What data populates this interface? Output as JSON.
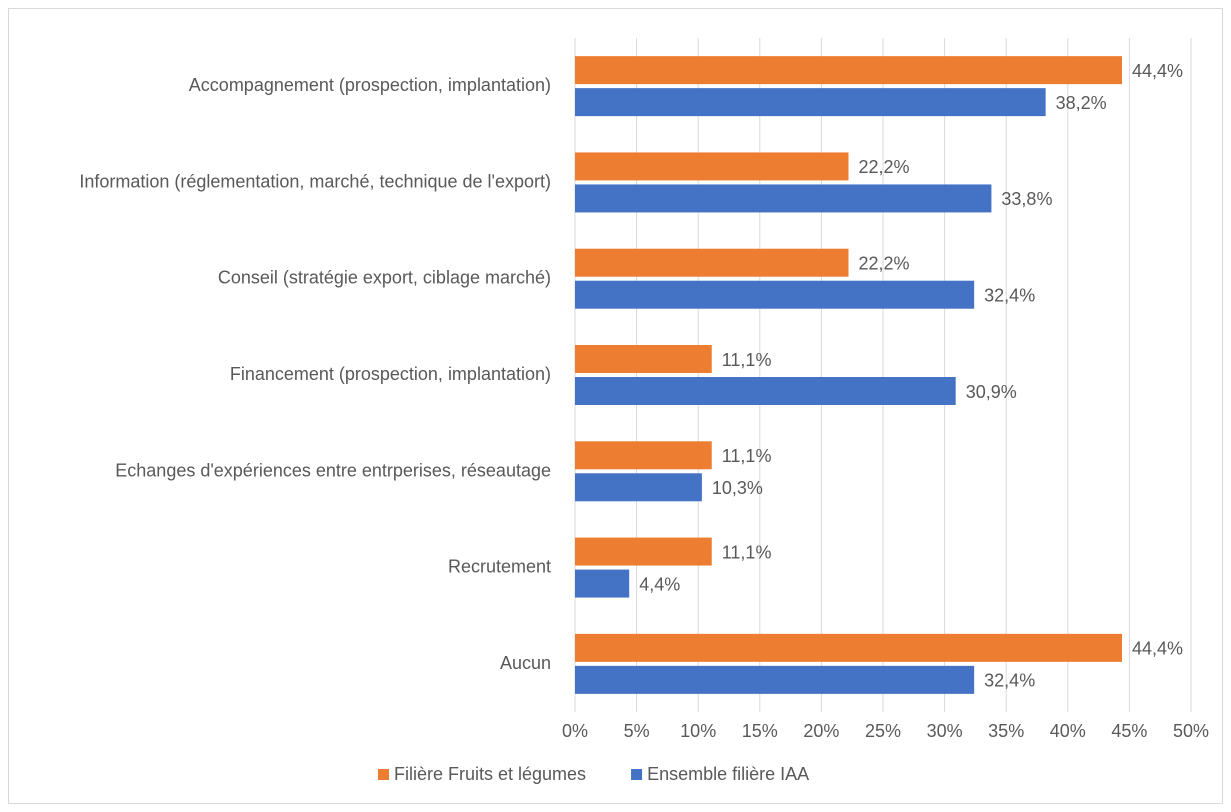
{
  "chart_data": {
    "type": "bar",
    "orientation": "horizontal",
    "categories": [
      "Accompagnement (prospection, implantation)",
      "Information (réglementation, marché, technique de l'export)",
      "Conseil (stratégie export, ciblage marché)",
      "Financement (prospection, implantation)",
      "Echanges d'expériences entre entrperises, réseautage",
      "Recrutement",
      "Aucun"
    ],
    "series": [
      {
        "name": "Filière Fruits et légumes",
        "color": "#ed7d31",
        "values": [
          44.4,
          22.2,
          22.2,
          11.1,
          11.1,
          11.1,
          44.4
        ],
        "value_labels": [
          "44,4%",
          "22,2%",
          "22,2%",
          "11,1%",
          "11,1%",
          "11,1%",
          "44,4%"
        ]
      },
      {
        "name": "Ensemble filière IAA",
        "color": "#4472c4",
        "values": [
          38.2,
          33.8,
          32.4,
          30.9,
          10.3,
          4.4,
          32.4
        ],
        "value_labels": [
          "38,2%",
          "33,8%",
          "32,4%",
          "30,9%",
          "10,3%",
          "4,4%",
          "32,4%"
        ]
      }
    ],
    "xlim": [
      0,
      50
    ],
    "xticks": [
      {
        "value": 0,
        "label": "0%"
      },
      {
        "value": 5,
        "label": "5%"
      },
      {
        "value": 10,
        "label": "10%"
      },
      {
        "value": 15,
        "label": "15%"
      },
      {
        "value": 20,
        "label": "20%"
      },
      {
        "value": 25,
        "label": "25%"
      },
      {
        "value": 30,
        "label": "30%"
      },
      {
        "value": 35,
        "label": "35%"
      },
      {
        "value": 40,
        "label": "40%"
      },
      {
        "value": 45,
        "label": "45%"
      },
      {
        "value": 50,
        "label": "50%"
      }
    ],
    "grid": true,
    "legend": "bottom"
  }
}
